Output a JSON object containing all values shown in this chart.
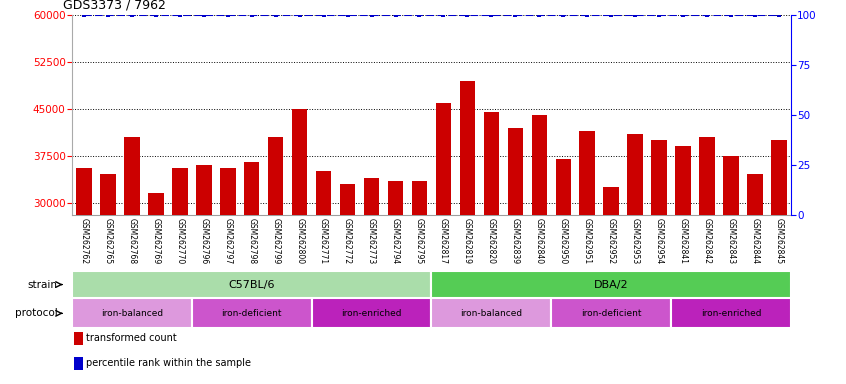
{
  "title": "GDS3373 / 7962",
  "samples": [
    "GSM262762",
    "GSM262765",
    "GSM262768",
    "GSM262769",
    "GSM262770",
    "GSM262796",
    "GSM262797",
    "GSM262798",
    "GSM262799",
    "GSM262800",
    "GSM262771",
    "GSM262772",
    "GSM262773",
    "GSM262794",
    "GSM262795",
    "GSM262817",
    "GSM262819",
    "GSM262820",
    "GSM262839",
    "GSM262840",
    "GSM262950",
    "GSM262951",
    "GSM262952",
    "GSM262953",
    "GSM262954",
    "GSM262841",
    "GSM262842",
    "GSM262843",
    "GSM262844",
    "GSM262845"
  ],
  "bar_values": [
    35500,
    34500,
    40500,
    31500,
    35500,
    36000,
    35500,
    36500,
    40500,
    45000,
    35000,
    33000,
    34000,
    33500,
    33500,
    46000,
    49500,
    44500,
    42000,
    44000,
    37000,
    41500,
    32500,
    41000,
    40000,
    39000,
    40500,
    37500,
    34500,
    40000
  ],
  "percentile_values": [
    100,
    100,
    100,
    100,
    100,
    100,
    100,
    100,
    100,
    100,
    100,
    100,
    100,
    100,
    100,
    100,
    100,
    100,
    100,
    100,
    100,
    100,
    100,
    100,
    100,
    100,
    100,
    100,
    100,
    100
  ],
  "bar_color": "#cc0000",
  "percentile_color": "#0000cc",
  "ylim_left": [
    28000,
    60000
  ],
  "ylim_right": [
    0,
    100
  ],
  "yticks_left": [
    30000,
    37500,
    45000,
    52500,
    60000
  ],
  "yticks_right": [
    0,
    25,
    50,
    75,
    100
  ],
  "strain_groups": [
    {
      "label": "C57BL/6",
      "start": 0,
      "end": 15,
      "color": "#aaddaa"
    },
    {
      "label": "DBA/2",
      "start": 15,
      "end": 30,
      "color": "#55cc55"
    }
  ],
  "protocol_groups": [
    {
      "label": "iron-balanced",
      "start": 0,
      "end": 5,
      "color": "#dd99dd"
    },
    {
      "label": "iron-deficient",
      "start": 5,
      "end": 10,
      "color": "#cc55cc"
    },
    {
      "label": "iron-enriched",
      "start": 10,
      "end": 15,
      "color": "#bb22bb"
    },
    {
      "label": "iron-balanced",
      "start": 15,
      "end": 20,
      "color": "#dd99dd"
    },
    {
      "label": "iron-deficient",
      "start": 20,
      "end": 25,
      "color": "#cc55cc"
    },
    {
      "label": "iron-enriched",
      "start": 25,
      "end": 30,
      "color": "#bb22bb"
    }
  ],
  "legend_items": [
    {
      "label": "transformed count",
      "color": "#cc0000"
    },
    {
      "label": "percentile rank within the sample",
      "color": "#0000cc"
    }
  ],
  "tick_bg_color": "#d8d8d8",
  "axis_bg_color": "#ffffff",
  "fig_bg_color": "#ffffff"
}
